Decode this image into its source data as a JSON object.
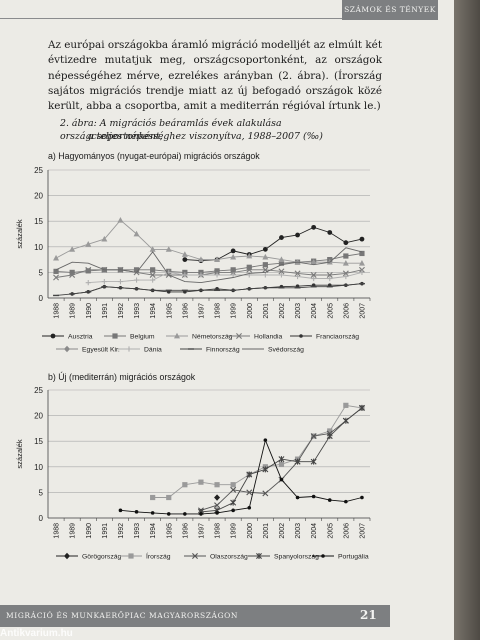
{
  "header": {
    "section": "SZÁMOK ÉS TÉNYEK"
  },
  "intro": "Az európai országokba áramló migráció modelljét az elmúlt két évtizedre mutatjuk meg, országcsoportonként, az országok népességéhez mérve, ezrelékes arányban (2. ábra). (Írország sajátos migrációs trendje miatt az új befogadó országok közé került, abba a csoportba, amit a mediterrán régióval írtunk le.)",
  "caption": {
    "line1": "2. ábra: A migrációs beáramlás évek alakulása országcsoportonként,",
    "line2": "a teljes népességhez viszonyítva, 1988–2007 (‰)"
  },
  "footer": {
    "running_title": "MIGRÁCIÓ ÉS MUNKAERŐPIAC MAGYARORSZÁGON",
    "page_number": "21"
  },
  "watermark": "Antikvarium.hu",
  "colors": {
    "page": "#ecebe6",
    "band": "#7d7f81",
    "line_dark": "#222222",
    "line_mid": "#666666",
    "line_light": "#9a9a9a"
  },
  "chart_data": [
    {
      "type": "line",
      "title": "a) Hagyományos (nyugat-európai) migrációs országok",
      "ylabel": "százalék",
      "ylim": [
        0,
        25
      ],
      "yticks": [
        0,
        5,
        10,
        15,
        20,
        25
      ],
      "x": [
        "1988",
        "1989",
        "1990",
        "1991",
        "1992",
        "1993",
        "1994",
        "1995",
        "1996",
        "1997",
        "1998",
        "1999",
        "2000",
        "2001",
        "2002",
        "2003",
        "2004",
        "2005",
        "2006",
        "2007"
      ],
      "grid": "horizontal",
      "legend_position": "bottom",
      "series": [
        {
          "name": "Ausztria",
          "marker": "circle",
          "color": "#222222",
          "values": [
            null,
            null,
            null,
            null,
            null,
            null,
            null,
            null,
            7.5,
            7.3,
            7.5,
            9.2,
            8.5,
            9.5,
            11.8,
            12.3,
            13.8,
            12.8,
            10.8,
            11.5
          ]
        },
        {
          "name": "Belgium",
          "marker": "square",
          "color": "#777777",
          "values": [
            5.2,
            5.0,
            5.3,
            5.5,
            5.5,
            5.5,
            5.5,
            5.2,
            5.0,
            5.0,
            5.3,
            5.5,
            6.0,
            6.5,
            6.8,
            7.0,
            7.2,
            7.5,
            8.2,
            8.7
          ]
        },
        {
          "name": "Németország",
          "marker": "triangle",
          "color": "#9a9a9a",
          "values": [
            7.8,
            9.5,
            10.5,
            11.5,
            15.2,
            12.5,
            9.5,
            9.5,
            8.5,
            7.5,
            7.5,
            8.0,
            8.2,
            8.0,
            7.5,
            7.0,
            7.0,
            7.0,
            6.8,
            6.8
          ]
        },
        {
          "name": "Hollandia",
          "marker": "x",
          "color": "#7a7a7a",
          "values": [
            4.0,
            4.5,
            5.5,
            5.5,
            5.5,
            5.0,
            4.5,
            4.5,
            4.5,
            4.5,
            5.0,
            5.0,
            5.5,
            5.5,
            5.2,
            4.8,
            4.5,
            4.5,
            4.8,
            5.5
          ]
        },
        {
          "name": "Franciaország",
          "marker": "dot",
          "color": "#333333",
          "values": [
            null,
            0.8,
            1.2,
            2.2,
            2.0,
            1.8,
            1.5,
            1.2,
            1.2,
            1.5,
            1.8,
            1.5,
            1.8,
            2.0,
            2.2,
            2.3,
            2.5,
            2.5,
            2.5,
            2.8
          ]
        },
        {
          "name": "Egyesült Kir.",
          "marker": "diamond",
          "color": "#8a8a8a",
          "values": [
            null,
            null,
            null,
            null,
            null,
            null,
            null,
            null,
            null,
            null,
            null,
            null,
            null,
            null,
            null,
            null,
            null,
            null,
            null,
            null
          ]
        },
        {
          "name": "Dánia",
          "marker": "plus",
          "color": "#b0b0b0",
          "values": [
            null,
            null,
            3.0,
            3.2,
            3.2,
            3.5,
            3.5,
            5.0,
            4.5,
            4.5,
            4.5,
            4.5,
            4.5,
            4.5,
            4.5,
            4.2,
            3.8,
            3.8,
            4.2,
            5.0
          ]
        },
        {
          "name": "Finnország",
          "marker": "dash",
          "color": "#444444",
          "values": [
            0.5,
            0.8,
            1.2,
            2.2,
            2.0,
            1.8,
            1.5,
            1.5,
            1.5,
            1.5,
            1.5,
            1.5,
            1.8,
            2.0,
            2.0,
            2.0,
            2.2,
            2.2,
            2.5,
            2.8
          ]
        },
        {
          "name": "Svédország",
          "marker": "none",
          "color": "#666666",
          "values": [
            5.5,
            7.0,
            6.8,
            5.5,
            5.5,
            5.0,
            9.0,
            4.5,
            3.2,
            3.0,
            3.5,
            4.0,
            4.8,
            5.0,
            6.5,
            7.0,
            6.5,
            7.0,
            9.8,
            9.0
          ]
        }
      ]
    },
    {
      "type": "line",
      "title": "b) Új (mediterrán) migrációs országok",
      "ylabel": "százalék",
      "ylim": [
        0,
        25
      ],
      "yticks": [
        0,
        5,
        10,
        15,
        20,
        25
      ],
      "x": [
        "1988",
        "1989",
        "1990",
        "1991",
        "1992",
        "1993",
        "1994",
        "1995",
        "1996",
        "1997",
        "1998",
        "1999",
        "2000",
        "2001",
        "2002",
        "2003",
        "2004",
        "2005",
        "2006",
        "2007"
      ],
      "grid": "horizontal",
      "legend_position": "bottom",
      "series": [
        {
          "name": "Görögország",
          "marker": "diamond",
          "color": "#222222",
          "values": [
            null,
            null,
            null,
            null,
            null,
            null,
            null,
            null,
            null,
            null,
            4.0,
            null,
            null,
            null,
            null,
            null,
            null,
            null,
            null,
            null
          ]
        },
        {
          "name": "Írország",
          "marker": "square",
          "color": "#9a9a9a",
          "values": [
            null,
            null,
            null,
            null,
            null,
            null,
            4.0,
            4.0,
            6.5,
            7.0,
            6.5,
            6.5,
            8.5,
            10.0,
            10.5,
            11.5,
            16.0,
            17.0,
            22.0,
            21.5
          ]
        },
        {
          "name": "Olaszország",
          "marker": "x",
          "color": "#555555",
          "values": [
            null,
            null,
            null,
            null,
            null,
            null,
            null,
            null,
            null,
            1.5,
            2.5,
            5.5,
            5.0,
            4.8,
            7.5,
            11.0,
            16.0,
            16.5,
            19.0,
            21.5
          ]
        },
        {
          "name": "Spanyolország",
          "marker": "star",
          "color": "#444444",
          "values": [
            null,
            null,
            null,
            null,
            null,
            null,
            null,
            null,
            null,
            1.2,
            1.5,
            3.0,
            8.5,
            9.5,
            11.5,
            11.0,
            11.0,
            16.0,
            19.0,
            21.5
          ]
        },
        {
          "name": "Portugália",
          "marker": "dot",
          "color": "#111111",
          "values": [
            null,
            null,
            null,
            null,
            1.5,
            1.2,
            1.0,
            0.8,
            0.8,
            0.8,
            1.0,
            1.5,
            2.0,
            15.2,
            7.5,
            4.0,
            4.2,
            3.5,
            3.2,
            4.0
          ]
        }
      ]
    }
  ]
}
